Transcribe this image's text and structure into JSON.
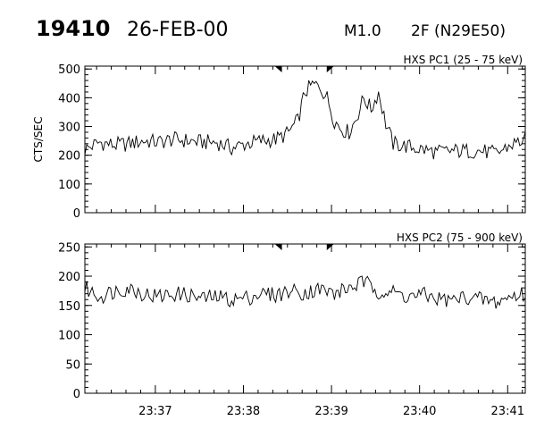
{
  "header": {
    "event_id": "19410",
    "date": "26-FEB-00",
    "goes_class": "M1.0",
    "importance_location": "2F (N29E50)"
  },
  "chart_data": [
    {
      "type": "line",
      "title": "HXS PC1 (25 - 75 keV)",
      "ylabel": "CTS/SEC",
      "xlabel": "",
      "ylim": [
        0,
        510
      ],
      "yticks": [
        0,
        100,
        200,
        300,
        400,
        500
      ],
      "xlim": [
        "23:36:12",
        "23:41:12"
      ],
      "xtick_labels": [
        "23:37",
        "23:38",
        "23:39",
        "23:40",
        "23:41"
      ],
      "markers": [
        "23:38:25",
        "23:38:58"
      ],
      "x": [
        "23:36:12",
        "23:36:22",
        "23:36:32",
        "23:36:42",
        "23:36:52",
        "23:37:02",
        "23:37:12",
        "23:37:22",
        "23:37:32",
        "23:37:42",
        "23:37:52",
        "23:38:02",
        "23:38:12",
        "23:38:22",
        "23:38:30",
        "23:38:37",
        "23:38:42",
        "23:38:47",
        "23:38:52",
        "23:38:57",
        "23:39:02",
        "23:39:07",
        "23:39:12",
        "23:39:17",
        "23:39:22",
        "23:39:27",
        "23:39:32",
        "23:39:37",
        "23:39:42",
        "23:39:52",
        "23:40:02",
        "23:40:12",
        "23:40:22",
        "23:40:32",
        "23:40:42",
        "23:40:52",
        "23:41:02",
        "23:41:12"
      ],
      "series": [
        {
          "values": [
            220,
            245,
            235,
            240,
            250,
            245,
            255,
            250,
            245,
            245,
            225,
            240,
            250,
            255,
            275,
            320,
            420,
            445,
            440,
            400,
            320,
            290,
            280,
            330,
            400,
            360,
            420,
            310,
            240,
            230,
            220,
            210,
            215,
            215,
            215,
            205,
            235,
            255
          ]
        }
      ]
    },
    {
      "type": "line",
      "title": "HXS PC2 (75 - 900 keV)",
      "ylabel": "",
      "xlabel": "",
      "ylim": [
        0,
        255
      ],
      "yticks": [
        0,
        50,
        100,
        150,
        200,
        250
      ],
      "xlim": [
        "23:36:12",
        "23:41:12"
      ],
      "xtick_labels": [
        "23:37",
        "23:38",
        "23:39",
        "23:40",
        "23:41"
      ],
      "markers": [
        "23:38:25",
        "23:38:58"
      ],
      "x": [
        "23:36:12",
        "23:36:22",
        "23:36:32",
        "23:36:42",
        "23:36:52",
        "23:37:02",
        "23:37:12",
        "23:37:22",
        "23:37:32",
        "23:37:42",
        "23:37:52",
        "23:38:02",
        "23:38:12",
        "23:38:22",
        "23:38:32",
        "23:38:42",
        "23:38:52",
        "23:39:02",
        "23:39:12",
        "23:39:22",
        "23:39:32",
        "23:39:42",
        "23:39:52",
        "23:40:02",
        "23:40:12",
        "23:40:22",
        "23:40:32",
        "23:40:42",
        "23:40:52",
        "23:41:02",
        "23:41:12"
      ],
      "series": [
        {
          "values": [
            180,
            165,
            175,
            180,
            170,
            165,
            170,
            168,
            162,
            165,
            160,
            163,
            170,
            168,
            175,
            172,
            178,
            170,
            180,
            190,
            175,
            172,
            165,
            168,
            162,
            158,
            165,
            160,
            155,
            165,
            170
          ]
        }
      ]
    }
  ]
}
